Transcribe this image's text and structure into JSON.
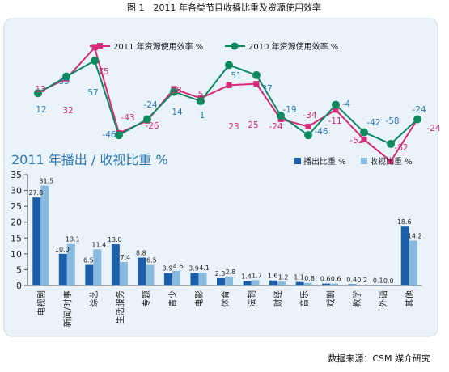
{
  "caption": "图 1　2011 年各类节目收播比重及资源使用效率",
  "source": "数据来源：CSM 媒介研究",
  "colors": {
    "panel_bg": "#e9f3f9",
    "panel_border": "#c9d9e4",
    "series_2011": "#d62a78",
    "series_2010": "#0f8a5f",
    "bar_broadcast": "#1d5eaa",
    "bar_viewing": "#88b9df",
    "title": "#2b78b4"
  },
  "chart_data": [
    {
      "type": "line",
      "series": [
        {
          "name": "2011 年资源使用效率 %",
          "values": [
            13,
            32,
            75,
            -43,
            -26,
            18,
            5,
            23,
            25,
            -24,
            -34,
            -11,
            -52,
            -82,
            -24
          ]
        },
        {
          "name": "2010 年资源使用效率 %",
          "values": [
            12,
            35,
            57,
            -46,
            -24,
            14,
            1,
            51,
            37,
            -19,
            -46,
            -4,
            -42,
            -58,
            -24
          ]
        }
      ],
      "value_labels_2011": [
        "13",
        "32",
        "75",
        "-43",
        "-26",
        "18",
        "5",
        "23",
        "25",
        "-24",
        "-34",
        "-11",
        "-52",
        "-82",
        "-24"
      ],
      "value_labels_2010": [
        "12",
        "35",
        "57",
        "-46",
        "-24",
        "14",
        "1",
        "51",
        "37",
        "-19",
        "-46",
        "-4",
        "-42",
        "-58",
        "-24"
      ],
      "ylim": [
        -90,
        80
      ]
    },
    {
      "type": "bar",
      "title": "2011 年播出 / 收视比重 %",
      "categories": [
        "电视剧",
        "新闻/时事",
        "综艺",
        "生活服务",
        "专题",
        "青少",
        "电影",
        "体育",
        "法制",
        "财经",
        "音乐",
        "戏剧",
        "教学",
        "外语",
        "其他"
      ],
      "series": [
        {
          "name": "播出比重 %",
          "values": [
            27.8,
            10.0,
            6.5,
            13.0,
            8.8,
            3.9,
            3.9,
            2.3,
            1.4,
            1.6,
            1.1,
            0.6,
            0.4,
            0.1,
            18.6
          ]
        },
        {
          "name": "收视比重 %",
          "values": [
            31.5,
            13.1,
            11.4,
            7.4,
            6.5,
            4.6,
            4.1,
            2.8,
            1.7,
            1.2,
            0.8,
            0.6,
            0.2,
            0.0,
            14.2
          ]
        }
      ],
      "value_labels_broadcast": [
        "27.8",
        "10.0",
        "6.5",
        "13.0",
        "8.8",
        "3.9",
        "3.9",
        "2.3",
        "1.4",
        "1.6",
        "1.1",
        "0.6",
        "0.4",
        "0.1",
        "18.6"
      ],
      "value_labels_viewing": [
        "31.5",
        "13.1",
        "11.4",
        "7.4",
        "6.5",
        "4.6",
        "4.1",
        "2.8",
        "1.7",
        "1.2",
        "0.8",
        "0.6",
        "0.2",
        "0.0",
        "14.2"
      ],
      "ylim": [
        0,
        35
      ],
      "yticks": [
        "0",
        "5",
        "10",
        "15",
        "20",
        "25",
        "30",
        "35"
      ],
      "legend": "top-right"
    }
  ]
}
